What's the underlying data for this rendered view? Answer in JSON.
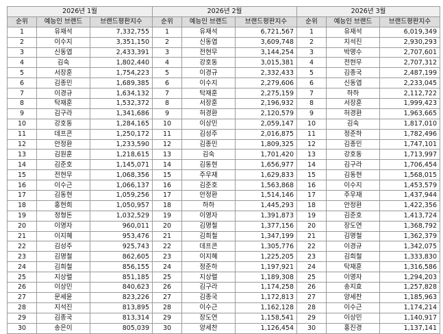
{
  "headers": {
    "rank": "순위",
    "brand": "예능인 브랜드",
    "index": "브랜드평판지수"
  },
  "months": [
    {
      "title": "2026년 1월",
      "rows": [
        {
          "rank": "1",
          "name": "유재석",
          "value": "7,332,755"
        },
        {
          "rank": "2",
          "name": "이수지",
          "value": "3,351,150"
        },
        {
          "rank": "3",
          "name": "신동엽",
          "value": "2,433,391"
        },
        {
          "rank": "4",
          "name": "김숙",
          "value": "1,802,440"
        },
        {
          "rank": "5",
          "name": "서장훈",
          "value": "1,754,223"
        },
        {
          "rank": "6",
          "name": "김종민",
          "value": "1,689,385"
        },
        {
          "rank": "7",
          "name": "이경규",
          "value": "1,634,132"
        },
        {
          "rank": "8",
          "name": "탁재훈",
          "value": "1,532,372"
        },
        {
          "rank": "9",
          "name": "김구라",
          "value": "1,341,686"
        },
        {
          "rank": "10",
          "name": "강호동",
          "value": "1,284,165"
        },
        {
          "rank": "11",
          "name": "데프콘",
          "value": "1,250,172"
        },
        {
          "rank": "12",
          "name": "안정환",
          "value": "1,233,590"
        },
        {
          "rank": "13",
          "name": "김원훈",
          "value": "1,218,615"
        },
        {
          "rank": "14",
          "name": "김준호",
          "value": "1,145,071"
        },
        {
          "rank": "15",
          "name": "전현무",
          "value": "1,068,356"
        },
        {
          "rank": "16",
          "name": "이수근",
          "value": "1,066,137"
        },
        {
          "rank": "17",
          "name": "김동현",
          "value": "1,059,256"
        },
        {
          "rank": "18",
          "name": "홍현희",
          "value": "1,050,957"
        },
        {
          "rank": "19",
          "name": "정형돈",
          "value": "1,032,529"
        },
        {
          "rank": "20",
          "name": "이영자",
          "value": "960,011"
        },
        {
          "rank": "21",
          "name": "이지혜",
          "value": "953,476"
        },
        {
          "rank": "22",
          "name": "김성주",
          "value": "925,743"
        },
        {
          "rank": "23",
          "name": "김명철",
          "value": "862,605"
        },
        {
          "rank": "24",
          "name": "김희철",
          "value": "856,155"
        },
        {
          "rank": "25",
          "name": "지상렬",
          "value": "851,185"
        },
        {
          "rank": "26",
          "name": "이상민",
          "value": "840,623"
        },
        {
          "rank": "27",
          "name": "문세윤",
          "value": "823,226"
        },
        {
          "rank": "28",
          "name": "지석진",
          "value": "813,895"
        },
        {
          "rank": "29",
          "name": "김종국",
          "value": "813,314"
        },
        {
          "rank": "30",
          "name": "송은이",
          "value": "805,039"
        }
      ]
    },
    {
      "title": "2026년 2월",
      "rows": [
        {
          "rank": "1",
          "name": "유재석",
          "value": "6,721,567"
        },
        {
          "rank": "2",
          "name": "신동엽",
          "value": "3,609,748"
        },
        {
          "rank": "3",
          "name": "전현무",
          "value": "3,144,254"
        },
        {
          "rank": "4",
          "name": "강호동",
          "value": "3,015,381"
        },
        {
          "rank": "5",
          "name": "이경규",
          "value": "2,332,433"
        },
        {
          "rank": "6",
          "name": "이수지",
          "value": "2,279,606"
        },
        {
          "rank": "7",
          "name": "탁재훈",
          "value": "2,275,159"
        },
        {
          "rank": "8",
          "name": "서장훈",
          "value": "2,196,932"
        },
        {
          "rank": "9",
          "name": "허경환",
          "value": "2,120,579"
        },
        {
          "rank": "10",
          "name": "이상민",
          "value": "2,059,147"
        },
        {
          "rank": "11",
          "name": "김성주",
          "value": "2,016,875"
        },
        {
          "rank": "12",
          "name": "김종민",
          "value": "1,809,325"
        },
        {
          "rank": "13",
          "name": "김숙",
          "value": "1,701,420"
        },
        {
          "rank": "14",
          "name": "김동현",
          "value": "1,656,977"
        },
        {
          "rank": "15",
          "name": "주우재",
          "value": "1,629,833"
        },
        {
          "rank": "16",
          "name": "김준호",
          "value": "1,563,868"
        },
        {
          "rank": "17",
          "name": "안정환",
          "value": "1,514,146"
        },
        {
          "rank": "18",
          "name": "하하",
          "value": "1,445,293"
        },
        {
          "rank": "19",
          "name": "이영자",
          "value": "1,391,873"
        },
        {
          "rank": "20",
          "name": "김명철",
          "value": "1,377,156"
        },
        {
          "rank": "21",
          "name": "김희철",
          "value": "1,347,199"
        },
        {
          "rank": "22",
          "name": "데프콘",
          "value": "1,305,776"
        },
        {
          "rank": "23",
          "name": "이지혜",
          "value": "1,225,205"
        },
        {
          "rank": "24",
          "name": "정준하",
          "value": "1,197,921"
        },
        {
          "rank": "25",
          "name": "지상렬",
          "value": "1,189,308"
        },
        {
          "rank": "26",
          "name": "김구라",
          "value": "1,174,258"
        },
        {
          "rank": "27",
          "name": "김종국",
          "value": "1,172,813"
        },
        {
          "rank": "28",
          "name": "이수근",
          "value": "1,162,128"
        },
        {
          "rank": "29",
          "name": "장도연",
          "value": "1,158,541"
        },
        {
          "rank": "30",
          "name": "양세찬",
          "value": "1,126,454"
        }
      ]
    },
    {
      "title": "2026년 3월",
      "rows": [
        {
          "rank": "1",
          "name": "유재석",
          "value": "6,019,349"
        },
        {
          "rank": "2",
          "name": "지석진",
          "value": "2,930,293"
        },
        {
          "rank": "3",
          "name": "박명수",
          "value": "2,707,601"
        },
        {
          "rank": "4",
          "name": "전현무",
          "value": "2,707,312"
        },
        {
          "rank": "5",
          "name": "김종국",
          "value": "2,487,199"
        },
        {
          "rank": "6",
          "name": "신동엽",
          "value": "2,233,045"
        },
        {
          "rank": "7",
          "name": "하하",
          "value": "2,112,722"
        },
        {
          "rank": "8",
          "name": "서장훈",
          "value": "1,999,423"
        },
        {
          "rank": "9",
          "name": "허경환",
          "value": "1,963,665"
        },
        {
          "rank": "10",
          "name": "김숙",
          "value": "1,817,010"
        },
        {
          "rank": "11",
          "name": "정준하",
          "value": "1,782,496"
        },
        {
          "rank": "12",
          "name": "김종민",
          "value": "1,747,101"
        },
        {
          "rank": "13",
          "name": "강호동",
          "value": "1,713,997"
        },
        {
          "rank": "14",
          "name": "김구라",
          "value": "1,706,454"
        },
        {
          "rank": "15",
          "name": "김동현",
          "value": "1,568,015"
        },
        {
          "rank": "16",
          "name": "이수지",
          "value": "1,453,579"
        },
        {
          "rank": "17",
          "name": "주우재",
          "value": "1,437,944"
        },
        {
          "rank": "18",
          "name": "안정환",
          "value": "1,422,356"
        },
        {
          "rank": "19",
          "name": "김준호",
          "value": "1,413,724"
        },
        {
          "rank": "20",
          "name": "장도연",
          "value": "1,368,792"
        },
        {
          "rank": "21",
          "name": "김명철",
          "value": "1,362,379"
        },
        {
          "rank": "22",
          "name": "이경규",
          "value": "1,342,075"
        },
        {
          "rank": "23",
          "name": "김희철",
          "value": "1,333,830"
        },
        {
          "rank": "24",
          "name": "탁재훈",
          "value": "1,316,586"
        },
        {
          "rank": "25",
          "name": "이영자",
          "value": "1,294,203"
        },
        {
          "rank": "26",
          "name": "송지효",
          "value": "1,257,828"
        },
        {
          "rank": "27",
          "name": "양세찬",
          "value": "1,185,963"
        },
        {
          "rank": "28",
          "name": "이수근",
          "value": "1,174,214"
        },
        {
          "rank": "29",
          "name": "이상민",
          "value": "1,140,917"
        },
        {
          "rank": "30",
          "name": "홍진경",
          "value": "1,137,141"
        }
      ]
    }
  ]
}
